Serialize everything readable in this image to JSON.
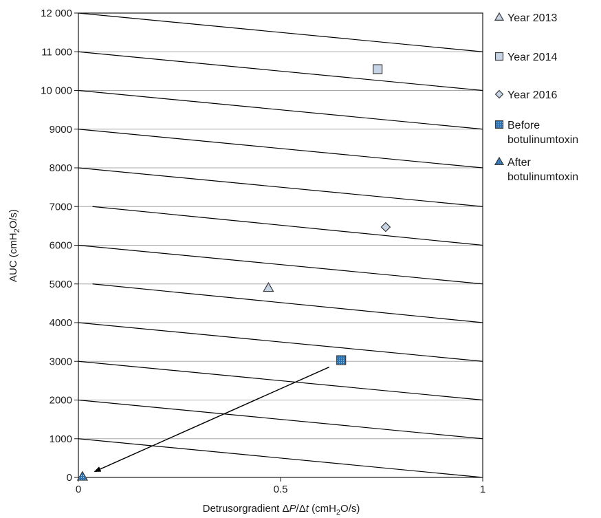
{
  "chart_data": {
    "type": "scatter",
    "xlabel": {
      "main": "Detrusorgradient Δ",
      "p": "P",
      "slash": "/Δ",
      "t": "t",
      "unit": " (cmH",
      "sub": "2",
      "tail": "O/s)"
    },
    "ylabel": {
      "main": "AUC (cmH",
      "sub": "2",
      "tail": "O/s)"
    },
    "xlim": [
      0,
      1
    ],
    "ylim": [
      0,
      12000
    ],
    "x_ticks": [
      {
        "value": 0,
        "label": "0"
      },
      {
        "value": 0.5,
        "label": "0.5"
      },
      {
        "value": 1,
        "label": "1"
      }
    ],
    "y_ticks": [
      {
        "value": 0,
        "label": "0"
      },
      {
        "value": 1000,
        "label": "1000"
      },
      {
        "value": 2000,
        "label": "2000"
      },
      {
        "value": 3000,
        "label": "3000"
      },
      {
        "value": 4000,
        "label": "4000"
      },
      {
        "value": 5000,
        "label": "5000"
      },
      {
        "value": 6000,
        "label": "6000"
      },
      {
        "value": 7000,
        "label": "7000"
      },
      {
        "value": 8000,
        "label": "8000"
      },
      {
        "value": 9000,
        "label": "9000"
      },
      {
        "value": 10000,
        "label": "10 000"
      },
      {
        "value": 11000,
        "label": "11 000"
      },
      {
        "value": 12000,
        "label": "12 000"
      }
    ],
    "grid": "horizontal",
    "diagonal_lines": [
      {
        "start": [
          0,
          12000
        ],
        "end": [
          1,
          11000
        ]
      },
      {
        "start": [
          0,
          11000
        ],
        "end": [
          1,
          10000
        ]
      },
      {
        "start": [
          0,
          10000
        ],
        "end": [
          1,
          9000
        ]
      },
      {
        "start": [
          0,
          9000
        ],
        "end": [
          1,
          8000
        ]
      },
      {
        "start": [
          0,
          8000
        ],
        "end": [
          1,
          7000
        ]
      },
      {
        "start": [
          0.035,
          7000
        ],
        "end": [
          1,
          6000
        ]
      },
      {
        "start": [
          0,
          6000
        ],
        "end": [
          1,
          5000
        ]
      },
      {
        "start": [
          0.035,
          5000
        ],
        "end": [
          1,
          4000
        ]
      },
      {
        "start": [
          0,
          4000
        ],
        "end": [
          1,
          3000
        ]
      },
      {
        "start": [
          0,
          3000
        ],
        "end": [
          1,
          2000
        ]
      },
      {
        "start": [
          0,
          2000
        ],
        "end": [
          1,
          1000
        ]
      },
      {
        "start": [
          0,
          1000
        ],
        "end": [
          1,
          0
        ]
      }
    ],
    "series": [
      {
        "name": "Year 2013",
        "marker": "triangle",
        "color": "#c6d4e6",
        "x": [
          0.47
        ],
        "y": [
          4900
        ]
      },
      {
        "name": "Year 2014",
        "marker": "square",
        "color": "#c6d4e6",
        "x": [
          0.74
        ],
        "y": [
          10550
        ]
      },
      {
        "name": "Year 2016",
        "marker": "diamond",
        "color": "#c6d4e6",
        "x": [
          0.76
        ],
        "y": [
          6470
        ]
      },
      {
        "name": "Before botulinumtoxin",
        "marker": "square-dotted",
        "color": "#2b74b8",
        "x": [
          0.65
        ],
        "y": [
          3030
        ]
      },
      {
        "name": "After botulinumtoxin",
        "marker": "triangle-dotted",
        "color": "#2b74b8",
        "x": [
          0.01
        ],
        "y": [
          20
        ]
      }
    ],
    "arrow": {
      "from": [
        0.62,
        2850
      ],
      "to": [
        0.04,
        150
      ]
    },
    "legend": {
      "position": "right",
      "items": [
        {
          "lines": [
            "Year 2013"
          ],
          "marker": "triangle",
          "color": "#c6d4e6"
        },
        {
          "lines": [
            "Year 2014"
          ],
          "marker": "square",
          "color": "#c6d4e6"
        },
        {
          "lines": [
            "Year 2016"
          ],
          "marker": "diamond",
          "color": "#c6d4e6"
        },
        {
          "lines": [
            "Before",
            "botulinumtoxin"
          ],
          "marker": "square-dotted",
          "color": "#2b74b8"
        },
        {
          "lines": [
            "After",
            "botulinumtoxin"
          ],
          "marker": "triangle-dotted",
          "color": "#2b74b8"
        }
      ]
    }
  }
}
